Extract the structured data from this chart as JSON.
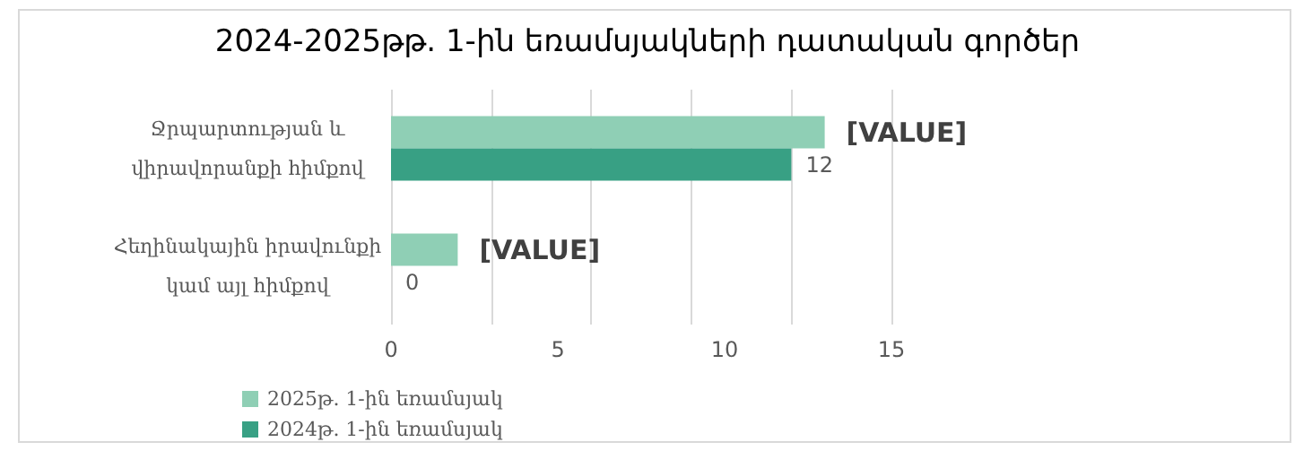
{
  "chart_data": {
    "type": "bar",
    "orientation": "horizontal",
    "title": "2024-2025թթ. 1-ին եռամսյակների դատական գործեր",
    "categories": [
      "Ջրպարտության և\nվիրավորանքի հիմքով",
      "Հեղինակային իրավունքի\nկամ այլ հիմքով"
    ],
    "series": [
      {
        "name": "2025թ. 1-ին եռամսյակ",
        "color": "#8fcfb5",
        "values": [
          13,
          2
        ],
        "value_labels": [
          "[VALUE]",
          "[VALUE]"
        ]
      },
      {
        "name": "2024թ. 1-ին եռամսյակ",
        "color": "#38a084",
        "values": [
          12,
          0
        ],
        "value_labels": [
          "12",
          "0"
        ]
      }
    ],
    "xlim": [
      0,
      15
    ],
    "xticks": [
      0,
      5,
      10,
      15
    ],
    "grid": "x",
    "legend": "bottom left"
  }
}
